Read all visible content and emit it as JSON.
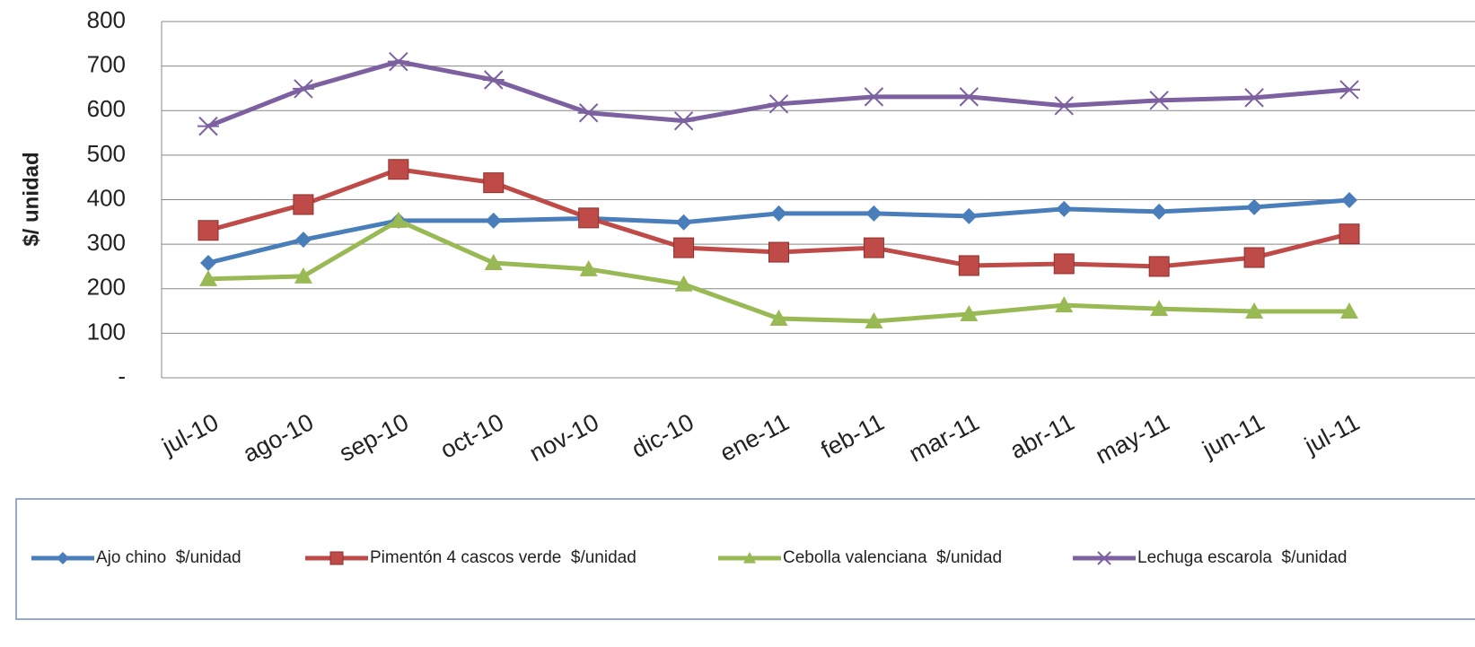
{
  "chart_data": {
    "type": "line",
    "y_label": "$/ unidad",
    "categories": [
      "jul-10",
      "ago-10",
      "sep-10",
      "oct-10",
      "nov-10",
      "dic-10",
      "ene-11",
      "feb-11",
      "mar-11",
      "abr-11",
      "may-11",
      "jun-11",
      "jul-11"
    ],
    "series": [
      {
        "name": "Ajo chino  $/unidad",
        "color": "#4a7ebb",
        "marker": "diamond",
        "values": [
          258,
          310,
          353,
          353,
          358,
          349,
          369,
          369,
          363,
          379,
          373,
          383,
          399
        ]
      },
      {
        "name": "Pimentón 4 cascos verde  $/unidad",
        "color": "#be4b48",
        "marker": "square",
        "values": [
          331,
          389,
          468,
          438,
          359,
          292,
          282,
          292,
          252,
          256,
          250,
          270,
          323
        ]
      },
      {
        "name": "Cebolla valenciana  $/unidad",
        "color": "#98b954",
        "marker": "triangle",
        "values": [
          222,
          228,
          353,
          258,
          244,
          210,
          133,
          127,
          143,
          163,
          155,
          149,
          149
        ]
      },
      {
        "name": "Lechuga escarola  $/unidad",
        "color": "#7d60a0",
        "marker": "x",
        "values": [
          565,
          649,
          710,
          669,
          595,
          577,
          615,
          631,
          631,
          611,
          623,
          629,
          647
        ]
      }
    ],
    "ylim": [
      0,
      800
    ],
    "yticks": [
      {
        "value": 0,
        "label": "-"
      },
      100,
      200,
      300,
      400,
      500,
      600,
      700,
      800
    ],
    "grid": true,
    "legend": "bottom"
  }
}
